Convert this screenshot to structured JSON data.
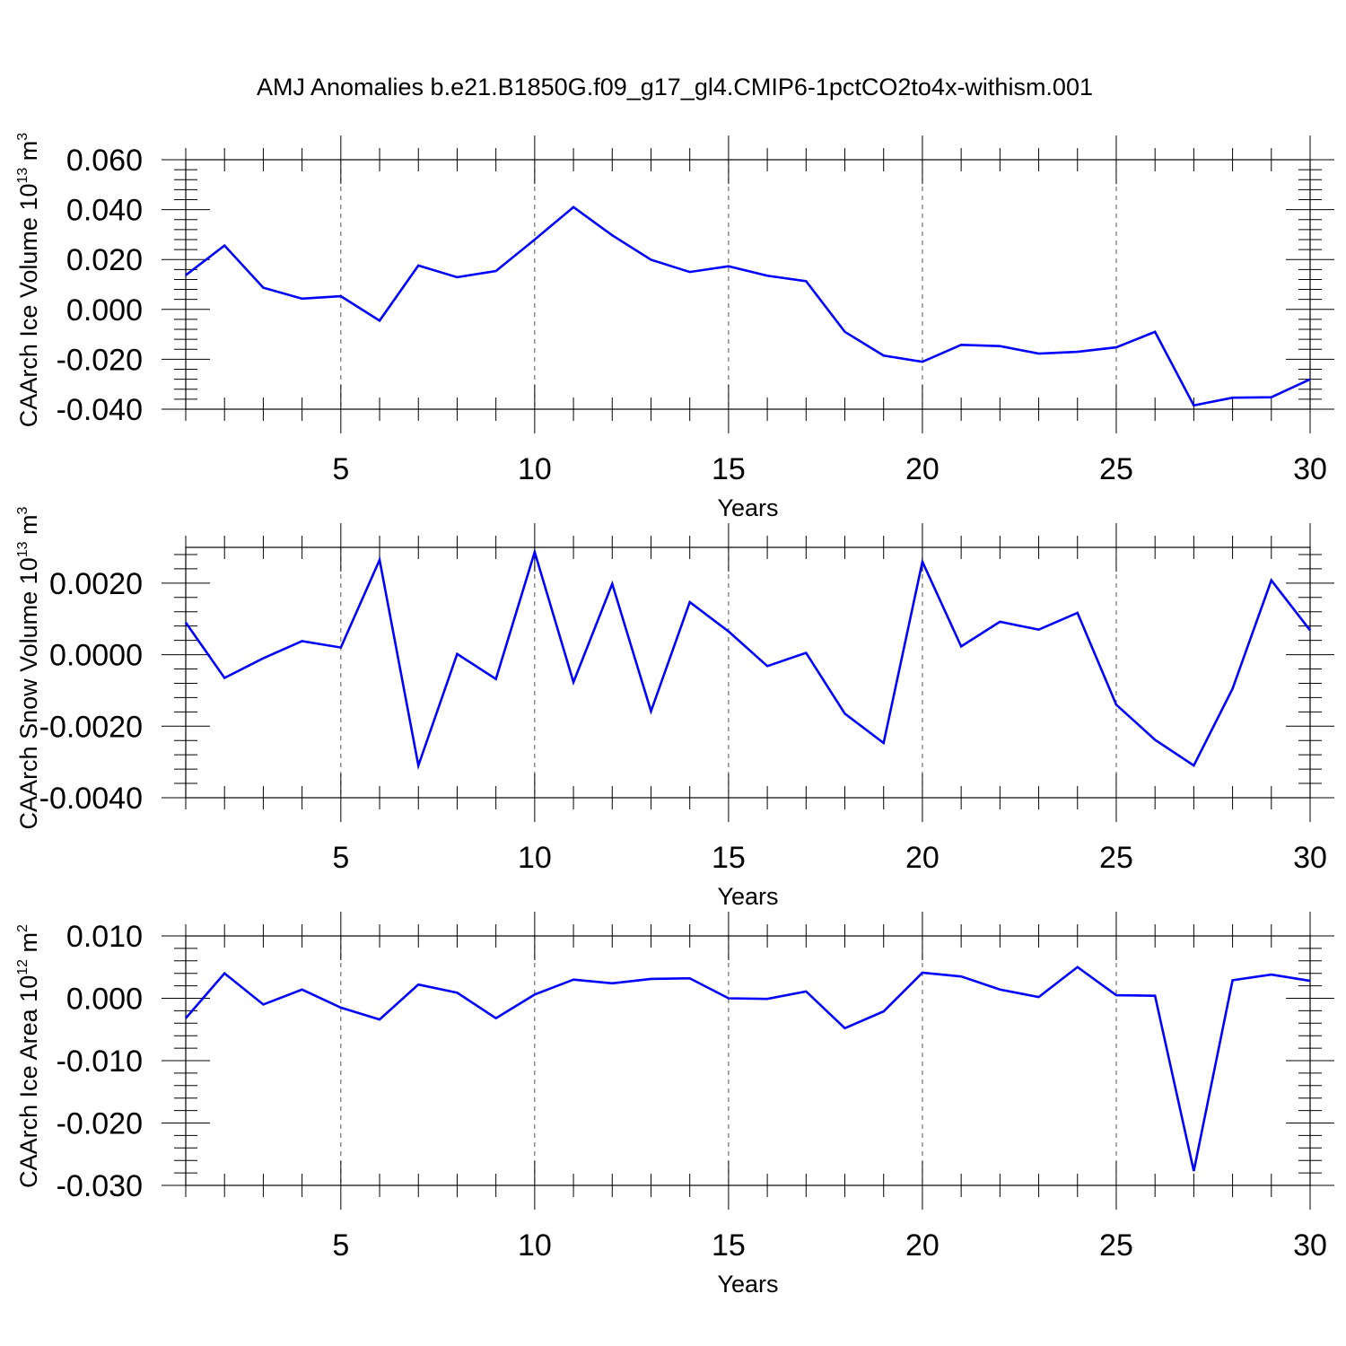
{
  "title": "AMJ Anomalies b.e21.B1850G.f09_g17_gl4.CMIP6-1pctCO2to4x-withism.001",
  "colors": {
    "line": "#0000ff",
    "axis": "#000000",
    "grid": "#555555"
  },
  "chart_data": [
    {
      "type": "line",
      "ylabel": "CAArch Ice Volume",
      "yunit_mantissa": "10",
      "yunit_exp": "13",
      "yunit_base": "m",
      "yunit_power": "3",
      "xlabel": "Years",
      "xlim": [
        1,
        30
      ],
      "ylim": [
        -0.04,
        0.06
      ],
      "ytick_values": [
        -0.04,
        -0.02,
        0.0,
        0.02,
        0.04,
        0.06
      ],
      "ytick_labels": [
        "-0.040",
        "-0.020",
        "0.000",
        "0.020",
        "0.040",
        "0.060"
      ],
      "xtick_values": [
        5,
        10,
        15,
        20,
        25,
        30
      ],
      "xtick_labels": [
        "5",
        "10",
        "15",
        "20",
        "25",
        "30"
      ],
      "grid": "vertical dashed at x ticks",
      "x": [
        1,
        2,
        3,
        4,
        5,
        6,
        7,
        8,
        9,
        10,
        11,
        12,
        13,
        14,
        15,
        16,
        17,
        18,
        19,
        20,
        21,
        22,
        23,
        24,
        25,
        26,
        27,
        28,
        29,
        30
      ],
      "values": [
        0.0137,
        0.0256,
        0.0087,
        0.0043,
        0.0053,
        -0.0045,
        0.0176,
        0.0129,
        0.0154,
        0.028,
        0.041,
        0.0297,
        0.0199,
        0.015,
        0.0173,
        0.0135,
        0.0113,
        -0.009,
        -0.0185,
        -0.021,
        -0.0142,
        -0.0147,
        -0.0177,
        -0.017,
        -0.0152,
        -0.009,
        -0.0385,
        -0.0354,
        -0.0352,
        -0.028
      ]
    },
    {
      "type": "line",
      "ylabel": "CAArch Snow Volume",
      "yunit_mantissa": "10",
      "yunit_exp": "13",
      "yunit_base": "m",
      "yunit_power": "3",
      "xlabel": "Years",
      "xlim": [
        1,
        30
      ],
      "ylim": [
        -0.004,
        0.003
      ],
      "ytick_values": [
        -0.004,
        -0.002,
        0.0,
        0.002
      ],
      "ytick_labels": [
        "-0.0040",
        "-0.0020",
        "0.0000",
        "0.0020"
      ],
      "xtick_values": [
        5,
        10,
        15,
        20,
        25,
        30
      ],
      "xtick_labels": [
        "5",
        "10",
        "15",
        "20",
        "25",
        "30"
      ],
      "grid": "vertical dashed at x ticks",
      "x": [
        1,
        2,
        3,
        4,
        5,
        6,
        7,
        8,
        9,
        10,
        11,
        12,
        13,
        14,
        15,
        16,
        17,
        18,
        19,
        20,
        21,
        22,
        23,
        24,
        25,
        26,
        27,
        28,
        29,
        30
      ],
      "values": [
        0.0009,
        -0.00065,
        -0.0001,
        0.00038,
        0.0002,
        0.00265,
        -0.0031,
        2e-05,
        -0.00068,
        0.00287,
        -0.00077,
        0.00198,
        -0.00158,
        0.00147,
        0.00065,
        -0.00032,
        5e-05,
        -0.00165,
        -0.00247,
        0.0026,
        0.00023,
        0.00092,
        0.0007,
        0.00117,
        -0.0014,
        -0.00238,
        -0.0031,
        -0.00095,
        0.00208,
        0.00068
      ]
    },
    {
      "type": "line",
      "ylabel": "CAArch Ice Area",
      "yunit_mantissa": "10",
      "yunit_exp": "12",
      "yunit_base": "m",
      "yunit_power": "2",
      "xlabel": "Years",
      "xlim": [
        1,
        30
      ],
      "ylim": [
        -0.03,
        0.01
      ],
      "ytick_values": [
        -0.03,
        -0.02,
        -0.01,
        0.0,
        0.01
      ],
      "ytick_labels": [
        "-0.030",
        "-0.020",
        "-0.010",
        "0.000",
        "0.010"
      ],
      "xtick_values": [
        5,
        10,
        15,
        20,
        25,
        30
      ],
      "xtick_labels": [
        "5",
        "10",
        "15",
        "20",
        "25",
        "30"
      ],
      "grid": "vertical dashed at x ticks",
      "x": [
        1,
        2,
        3,
        4,
        5,
        6,
        7,
        8,
        9,
        10,
        11,
        12,
        13,
        14,
        15,
        16,
        17,
        18,
        19,
        20,
        21,
        22,
        23,
        24,
        25,
        26,
        27,
        28,
        29,
        30
      ],
      "values": [
        -0.0032,
        0.004,
        -0.001,
        0.0014,
        -0.0015,
        -0.0034,
        0.0022,
        0.0009,
        -0.0032,
        0.0006,
        0.003,
        0.0024,
        0.0031,
        0.0032,
        -0.0,
        -0.0001,
        0.0011,
        -0.0048,
        -0.0021,
        0.0041,
        0.0035,
        0.0014,
        0.0002,
        0.005,
        0.0005,
        0.0004,
        -0.0277,
        0.0029,
        0.0038,
        0.0028
      ]
    }
  ]
}
